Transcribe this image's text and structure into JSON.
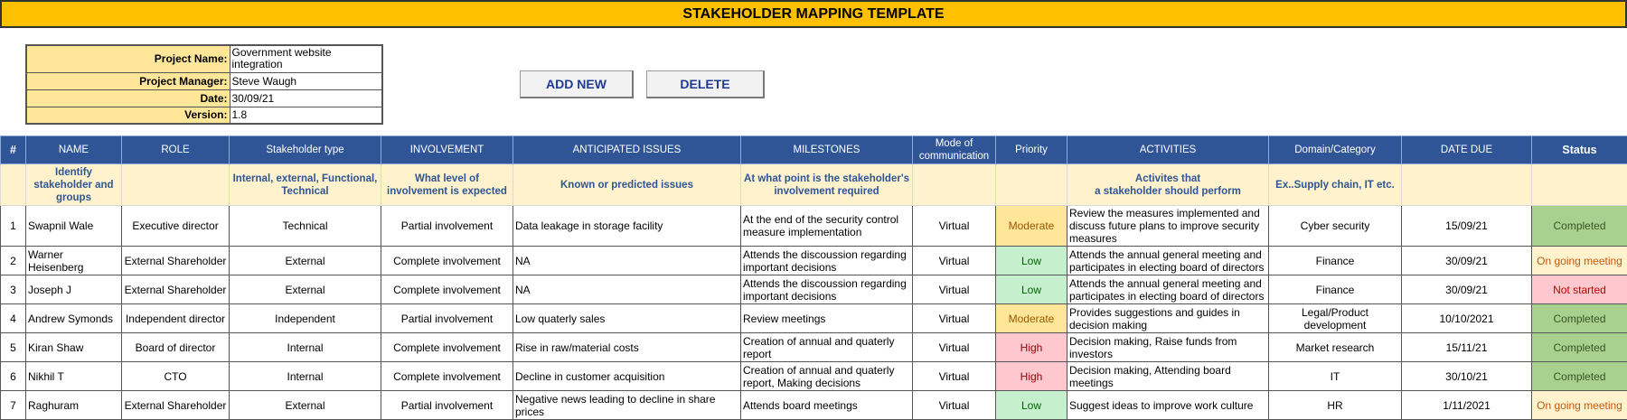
{
  "header": {
    "title": "STAKEHOLDER MAPPING TEMPLATE"
  },
  "project_info": [
    {
      "label": "Project Name:",
      "value": "Government website integration"
    },
    {
      "label": "Project Manager:",
      "value": "Steve Waugh"
    },
    {
      "label": "Date:",
      "value": "30/09/21"
    },
    {
      "label": "Version:",
      "value": "1.8"
    }
  ],
  "buttons": [
    "ADD NEW",
    "DELETE"
  ],
  "table": {
    "columns": [
      "#",
      "NAME",
      "ROLE",
      "Stakeholder type",
      "INVOLVEMENT",
      "ANTICIPATED ISSUES",
      "MILESTONES",
      "Mode of communication",
      "Priority",
      "ACTIVITIES",
      "Domain/Category",
      "DATE DUE",
      "Status"
    ],
    "hints": [
      null,
      "Identify stakeholder and groups",
      null,
      "Internal, external, Functional, Technical",
      "What level of involvement is expected",
      "Known or predicted issues",
      "At what point is the stakeholder's involvement required",
      null,
      null,
      "Activites that\na stakeholder should perform",
      "Ex..Supply chain, IT etc.",
      null,
      null
    ],
    "rows": [
      [
        "1",
        "Swapnil Wale",
        "Executive director",
        "Technical",
        "Partial involvement",
        "Data leakage in storage facility",
        "At the end of the security control measure implementation",
        "Virtual",
        "Moderate",
        "Review the measures implemented and discuss future plans to improve security measures",
        "Cyber security",
        "15/09/21",
        "Completed"
      ],
      [
        "2",
        "Warner Heisenberg",
        "External Shareholder",
        "External",
        "Complete involvement",
        "NA",
        "Attends the discoussion regarding important decisions",
        "Virtual",
        "Low",
        "Attends the annual general meeting and participates in electing board of directors",
        "Finance",
        "30/09/21",
        "On going meeting"
      ],
      [
        "3",
        "Joseph J",
        "External Shareholder",
        "External",
        "Complete involvement",
        "NA",
        "Attends the discoussion regarding important decisions",
        "Virtual",
        "Low",
        "Attends the annual general meeting and participates in electing board of directors",
        "Finance",
        "30/09/21",
        "Not started"
      ],
      [
        "4",
        "Andrew Symonds",
        "Independent director",
        "Independent",
        "Partial involvement",
        "Low quaterly sales",
        "Review meetings",
        "Virtual",
        "Moderate",
        "Provides suggestions and guides in decision making",
        "Legal/Product development",
        "10/10/2021",
        "Completed"
      ],
      [
        "5",
        "Kiran Shaw",
        "Board of director",
        "Internal",
        "Complete involvement",
        "Rise in raw/material costs",
        "Creation of annual and quaterly report",
        "Virtual",
        "High",
        "Decision making, Raise funds from investors",
        "Market research",
        "15/11/21",
        "Completed"
      ],
      [
        "6",
        "Nikhil T",
        "CTO",
        "Internal",
        "Complete involvement",
        "Decline in customer acquisition",
        "Creation of annual and quaterly report, Making decisions",
        "Virtual",
        "High",
        "Decision making, Attending board meetings",
        "IT",
        "30/10/21",
        "Completed"
      ],
      [
        "7",
        "Raghuram",
        "External Shareholder",
        "External",
        "Partial involvement",
        "Negative news leading to decline in share prices",
        "Attends board meetings",
        "Virtual",
        "Low",
        "Suggest ideas to improve work culture",
        "HR",
        "1/11/2021",
        "On going meeting"
      ]
    ],
    "cell_colors": {
      "Moderate": {
        "bg": "#ffe699",
        "fg": "#9c5700"
      },
      "Low": {
        "bg": "#c6efce",
        "fg": "#006100"
      },
      "High": {
        "bg": "#ffc7ce",
        "fg": "#9c0006"
      },
      "Completed": {
        "bg": "#a9d08e",
        "fg": "#375623"
      },
      "On going meeting": {
        "bg": "#fff2cc",
        "fg": "#c65911"
      },
      "Not started": {
        "bg": "#ffc7ce",
        "fg": "#c00000"
      }
    }
  }
}
